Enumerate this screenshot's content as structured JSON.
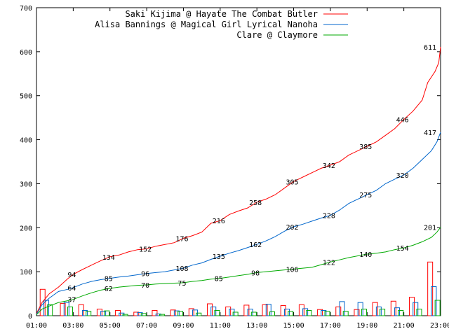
{
  "chart_data": {
    "type": "line",
    "title": "",
    "xlabel": "",
    "ylabel": "",
    "xlim_hours": [
      1,
      23
    ],
    "ylim": [
      0,
      700
    ],
    "y_ticks": [
      0,
      100,
      200,
      300,
      400,
      500,
      600,
      700
    ],
    "x_ticks": [
      "01:00",
      "03:00",
      "05:00",
      "07:00",
      "09:00",
      "11:00",
      "13:00",
      "15:00",
      "17:00",
      "19:00",
      "21:00",
      "23:00"
    ],
    "grid": false,
    "legend_position": "top-right",
    "series": [
      {
        "name": "Saki Kijima @ Hayate The Combat Butler",
        "color": "#ff0000",
        "points": [
          [
            1.0,
            5
          ],
          [
            1.3,
            30
          ],
          [
            1.7,
            50
          ],
          [
            2.2,
            65
          ],
          [
            2.7,
            84
          ],
          [
            3.0,
            94
          ],
          [
            3.5,
            105
          ],
          [
            4.0,
            115
          ],
          [
            4.5,
            125
          ],
          [
            5.0,
            134
          ],
          [
            5.5,
            138
          ],
          [
            6.0,
            145
          ],
          [
            6.5,
            150
          ],
          [
            7.0,
            152
          ],
          [
            7.5,
            158
          ],
          [
            8.0,
            162
          ],
          [
            8.5,
            166
          ],
          [
            9.0,
            176
          ],
          [
            9.5,
            182
          ],
          [
            10.0,
            190
          ],
          [
            10.5,
            210
          ],
          [
            11.0,
            216
          ],
          [
            11.5,
            230
          ],
          [
            12.0,
            238
          ],
          [
            12.5,
            245
          ],
          [
            13.0,
            258
          ],
          [
            13.5,
            265
          ],
          [
            14.0,
            275
          ],
          [
            14.5,
            290
          ],
          [
            15.0,
            305
          ],
          [
            15.5,
            315
          ],
          [
            16.0,
            325
          ],
          [
            16.5,
            335
          ],
          [
            17.0,
            342
          ],
          [
            17.5,
            350
          ],
          [
            18.0,
            365
          ],
          [
            18.5,
            375
          ],
          [
            19.0,
            385
          ],
          [
            19.5,
            395
          ],
          [
            20.0,
            410
          ],
          [
            20.5,
            425
          ],
          [
            21.0,
            446
          ],
          [
            21.5,
            465
          ],
          [
            22.0,
            490
          ],
          [
            22.3,
            530
          ],
          [
            22.7,
            555
          ],
          [
            22.9,
            575
          ],
          [
            23.0,
            611
          ]
        ],
        "labels": [
          [
            3.0,
            94
          ],
          [
            5.0,
            134
          ],
          [
            7.0,
            152
          ],
          [
            9.0,
            176
          ],
          [
            11.0,
            216
          ],
          [
            13.0,
            258
          ],
          [
            15.0,
            305
          ],
          [
            17.0,
            342
          ],
          [
            19.0,
            385
          ],
          [
            21.0,
            446
          ],
          [
            23.0,
            611
          ]
        ],
        "bars": [
          [
            1.2,
            60
          ],
          [
            2.3,
            28
          ],
          [
            3.3,
            25
          ],
          [
            4.3,
            15
          ],
          [
            5.3,
            12
          ],
          [
            6.3,
            8
          ],
          [
            7.3,
            12
          ],
          [
            8.3,
            13
          ],
          [
            9.3,
            16
          ],
          [
            10.3,
            27
          ],
          [
            11.3,
            20
          ],
          [
            12.3,
            24
          ],
          [
            13.3,
            25
          ],
          [
            14.3,
            23
          ],
          [
            15.3,
            25
          ],
          [
            16.3,
            14
          ],
          [
            17.3,
            20
          ],
          [
            18.3,
            14
          ],
          [
            19.3,
            30
          ],
          [
            20.3,
            33
          ],
          [
            21.3,
            42
          ],
          [
            22.3,
            122
          ]
        ]
      },
      {
        "name": "Alisa Bannings @ Magical Girl Lyrical Nanoha",
        "color": "#0066cc",
        "points": [
          [
            1.0,
            3
          ],
          [
            1.3,
            25
          ],
          [
            1.7,
            40
          ],
          [
            2.2,
            55
          ],
          [
            2.7,
            60
          ],
          [
            3.0,
            64
          ],
          [
            3.5,
            72
          ],
          [
            4.0,
            78
          ],
          [
            4.5,
            82
          ],
          [
            5.0,
            85
          ],
          [
            5.5,
            88
          ],
          [
            6.0,
            90
          ],
          [
            6.5,
            93
          ],
          [
            7.0,
            96
          ],
          [
            7.5,
            98
          ],
          [
            8.0,
            100
          ],
          [
            8.5,
            104
          ],
          [
            9.0,
            108
          ],
          [
            9.5,
            115
          ],
          [
            10.0,
            120
          ],
          [
            10.5,
            128
          ],
          [
            11.0,
            135
          ],
          [
            11.5,
            142
          ],
          [
            12.0,
            148
          ],
          [
            12.5,
            155
          ],
          [
            13.0,
            162
          ],
          [
            13.5,
            170
          ],
          [
            14.0,
            180
          ],
          [
            14.5,
            192
          ],
          [
            15.0,
            202
          ],
          [
            15.5,
            208
          ],
          [
            16.0,
            215
          ],
          [
            16.5,
            222
          ],
          [
            17.0,
            228
          ],
          [
            17.5,
            240
          ],
          [
            18.0,
            255
          ],
          [
            18.5,
            265
          ],
          [
            19.0,
            275
          ],
          [
            19.5,
            285
          ],
          [
            20.0,
            300
          ],
          [
            20.5,
            310
          ],
          [
            21.0,
            320
          ],
          [
            21.5,
            335
          ],
          [
            22.0,
            355
          ],
          [
            22.5,
            375
          ],
          [
            22.8,
            395
          ],
          [
            23.0,
            417
          ]
        ],
        "labels": [
          [
            3.0,
            64
          ],
          [
            5.0,
            85
          ],
          [
            7.0,
            96
          ],
          [
            9.0,
            108
          ],
          [
            11.0,
            135
          ],
          [
            13.0,
            162
          ],
          [
            15.0,
            202
          ],
          [
            17.0,
            228
          ],
          [
            19.0,
            275
          ],
          [
            21.0,
            320
          ],
          [
            23.0,
            417
          ]
        ],
        "bars": [
          [
            1.4,
            35
          ],
          [
            2.5,
            30
          ],
          [
            3.5,
            12
          ],
          [
            4.5,
            10
          ],
          [
            5.5,
            6
          ],
          [
            6.5,
            7
          ],
          [
            7.5,
            4
          ],
          [
            8.5,
            11
          ],
          [
            9.5,
            13
          ],
          [
            10.5,
            20
          ],
          [
            11.5,
            15
          ],
          [
            12.5,
            15
          ],
          [
            13.5,
            26
          ],
          [
            14.5,
            15
          ],
          [
            15.5,
            16
          ],
          [
            16.5,
            12
          ],
          [
            17.5,
            32
          ],
          [
            18.5,
            30
          ],
          [
            19.5,
            20
          ],
          [
            20.5,
            18
          ],
          [
            21.5,
            30
          ],
          [
            22.5,
            66
          ]
        ]
      },
      {
        "name": "Clare @ Claymore",
        "color": "#00aa00",
        "points": [
          [
            1.0,
            2
          ],
          [
            1.3,
            15
          ],
          [
            1.7,
            22
          ],
          [
            2.2,
            30
          ],
          [
            2.7,
            34
          ],
          [
            3.0,
            37
          ],
          [
            3.5,
            45
          ],
          [
            4.0,
            52
          ],
          [
            4.5,
            58
          ],
          [
            5.0,
            62
          ],
          [
            5.5,
            65
          ],
          [
            6.0,
            67
          ],
          [
            6.5,
            69
          ],
          [
            7.0,
            70
          ],
          [
            7.5,
            72
          ],
          [
            8.0,
            73
          ],
          [
            8.5,
            74
          ],
          [
            9.0,
            75
          ],
          [
            9.5,
            78
          ],
          [
            10.0,
            80
          ],
          [
            10.5,
            83
          ],
          [
            11.0,
            85
          ],
          [
            11.5,
            88
          ],
          [
            12.0,
            91
          ],
          [
            12.5,
            94
          ],
          [
            13.0,
            98
          ],
          [
            13.5,
            100
          ],
          [
            14.0,
            102
          ],
          [
            14.5,
            104
          ],
          [
            15.0,
            106
          ],
          [
            15.5,
            108
          ],
          [
            16.0,
            110
          ],
          [
            16.5,
            116
          ],
          [
            17.0,
            122
          ],
          [
            17.5,
            127
          ],
          [
            18.0,
            132
          ],
          [
            18.5,
            136
          ],
          [
            19.0,
            140
          ],
          [
            19.5,
            142
          ],
          [
            20.0,
            145
          ],
          [
            20.5,
            150
          ],
          [
            21.0,
            154
          ],
          [
            21.5,
            160
          ],
          [
            22.0,
            168
          ],
          [
            22.5,
            178
          ],
          [
            22.8,
            190
          ],
          [
            23.0,
            201
          ]
        ],
        "labels": [
          [
            3.0,
            37
          ],
          [
            5.0,
            62
          ],
          [
            7.0,
            70
          ],
          [
            9.0,
            75
          ],
          [
            11.0,
            85
          ],
          [
            13.0,
            98
          ],
          [
            15.0,
            106
          ],
          [
            17.0,
            122
          ],
          [
            19.0,
            140
          ],
          [
            21.0,
            154
          ],
          [
            23.0,
            201
          ]
        ],
        "bars": [
          [
            1.6,
            25
          ],
          [
            2.7,
            20
          ],
          [
            3.7,
            10
          ],
          [
            4.7,
            11
          ],
          [
            5.7,
            3
          ],
          [
            6.7,
            5
          ],
          [
            7.7,
            3
          ],
          [
            8.7,
            10
          ],
          [
            9.7,
            6
          ],
          [
            10.7,
            12
          ],
          [
            11.7,
            8
          ],
          [
            12.7,
            8
          ],
          [
            13.7,
            9
          ],
          [
            14.7,
            10
          ],
          [
            15.7,
            12
          ],
          [
            16.7,
            10
          ],
          [
            17.7,
            10
          ],
          [
            18.7,
            15
          ],
          [
            19.7,
            15
          ],
          [
            20.7,
            12
          ],
          [
            21.7,
            15
          ],
          [
            22.7,
            35
          ]
        ]
      }
    ]
  }
}
